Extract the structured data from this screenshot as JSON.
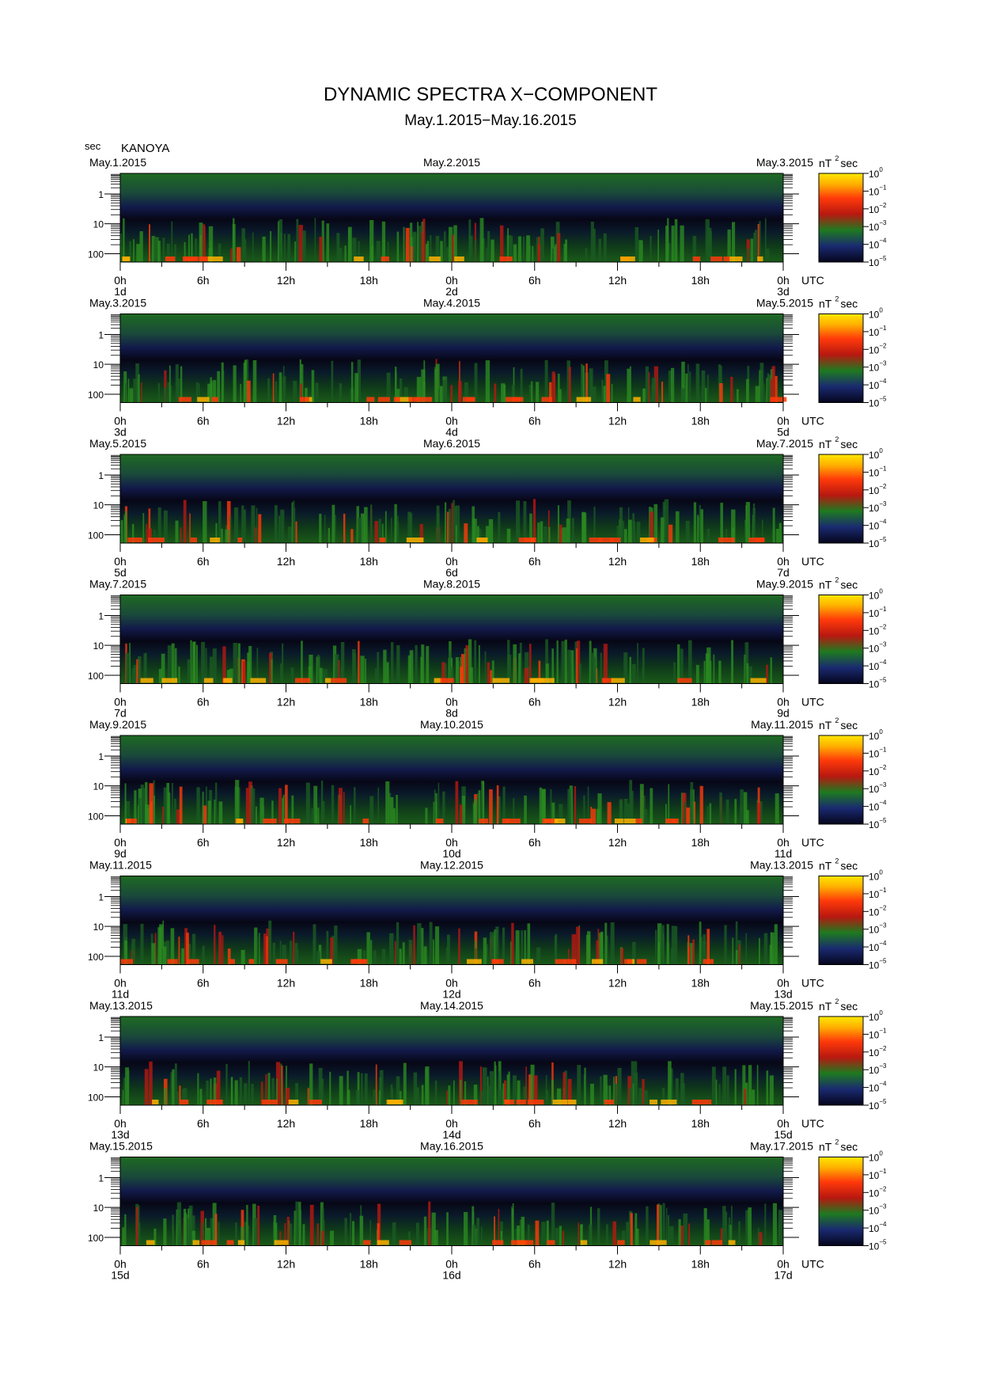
{
  "title": "DYNAMIC SPECTRA X−COMPONENT",
  "subtitle": "May.1.2015−May.16.2015",
  "station": "KANOYA",
  "y_unit": "sec",
  "utc_label": "UTC",
  "chart_data": {
    "type": "heatmap",
    "title": "DYNAMIC SPECTRA X−COMPONENT",
    "subtitle": "May.1.2015−May.16.2015",
    "ylabel": "sec",
    "y_scale": "log",
    "y_ticks": [
      "1",
      "10",
      "100"
    ],
    "x_ticks": [
      "0h",
      "6h",
      "12h",
      "18h",
      "0h",
      "6h",
      "12h",
      "18h",
      "0h"
    ],
    "x_unit": "UTC",
    "colorbar": {
      "unit_prefix": "nT",
      "unit_exponent": "2",
      "unit_suffix": "sec",
      "scale": "log",
      "tick_base": "10",
      "tick_exponents": [
        "0",
        "−1",
        "−2",
        "−3",
        "−4",
        "−5"
      ],
      "colors": [
        "#0a0a2a",
        "#1c2a6a",
        "#1f7a1f",
        "#c01a10",
        "#ff4a10",
        "#ffe000"
      ]
    },
    "panels": [
      {
        "left_date": "May.1.2015",
        "mid_date": "May.2.2015",
        "right_date": "May.3.2015",
        "day_labels": [
          "1d",
          "2d",
          "3d"
        ]
      },
      {
        "left_date": "May.3.2015",
        "mid_date": "May.4.2015",
        "right_date": "May.5.2015",
        "day_labels": [
          "3d",
          "4d",
          "5d"
        ]
      },
      {
        "left_date": "May.5.2015",
        "mid_date": "May.6.2015",
        "right_date": "May.7.2015",
        "day_labels": [
          "5d",
          "6d",
          "7d"
        ]
      },
      {
        "left_date": "May.7.2015",
        "mid_date": "May.8.2015",
        "right_date": "May.9.2015",
        "day_labels": [
          "7d",
          "8d",
          "9d"
        ]
      },
      {
        "left_date": "May.9.2015",
        "mid_date": "May.10.2015",
        "right_date": "May.11.2015",
        "day_labels": [
          "9d",
          "10d",
          "11d"
        ]
      },
      {
        "left_date": "May.11.2015",
        "mid_date": "May.12.2015",
        "right_date": "May.13.2015",
        "day_labels": [
          "11d",
          "12d",
          "13d"
        ]
      },
      {
        "left_date": "May.13.2015",
        "mid_date": "May.14.2015",
        "right_date": "May.15.2015",
        "day_labels": [
          "13d",
          "14d",
          "15d"
        ]
      },
      {
        "left_date": "May.15.2015",
        "mid_date": "May.16.2015",
        "right_date": "May.17.2015",
        "day_labels": [
          "15d",
          "16d",
          "17d"
        ]
      }
    ]
  }
}
